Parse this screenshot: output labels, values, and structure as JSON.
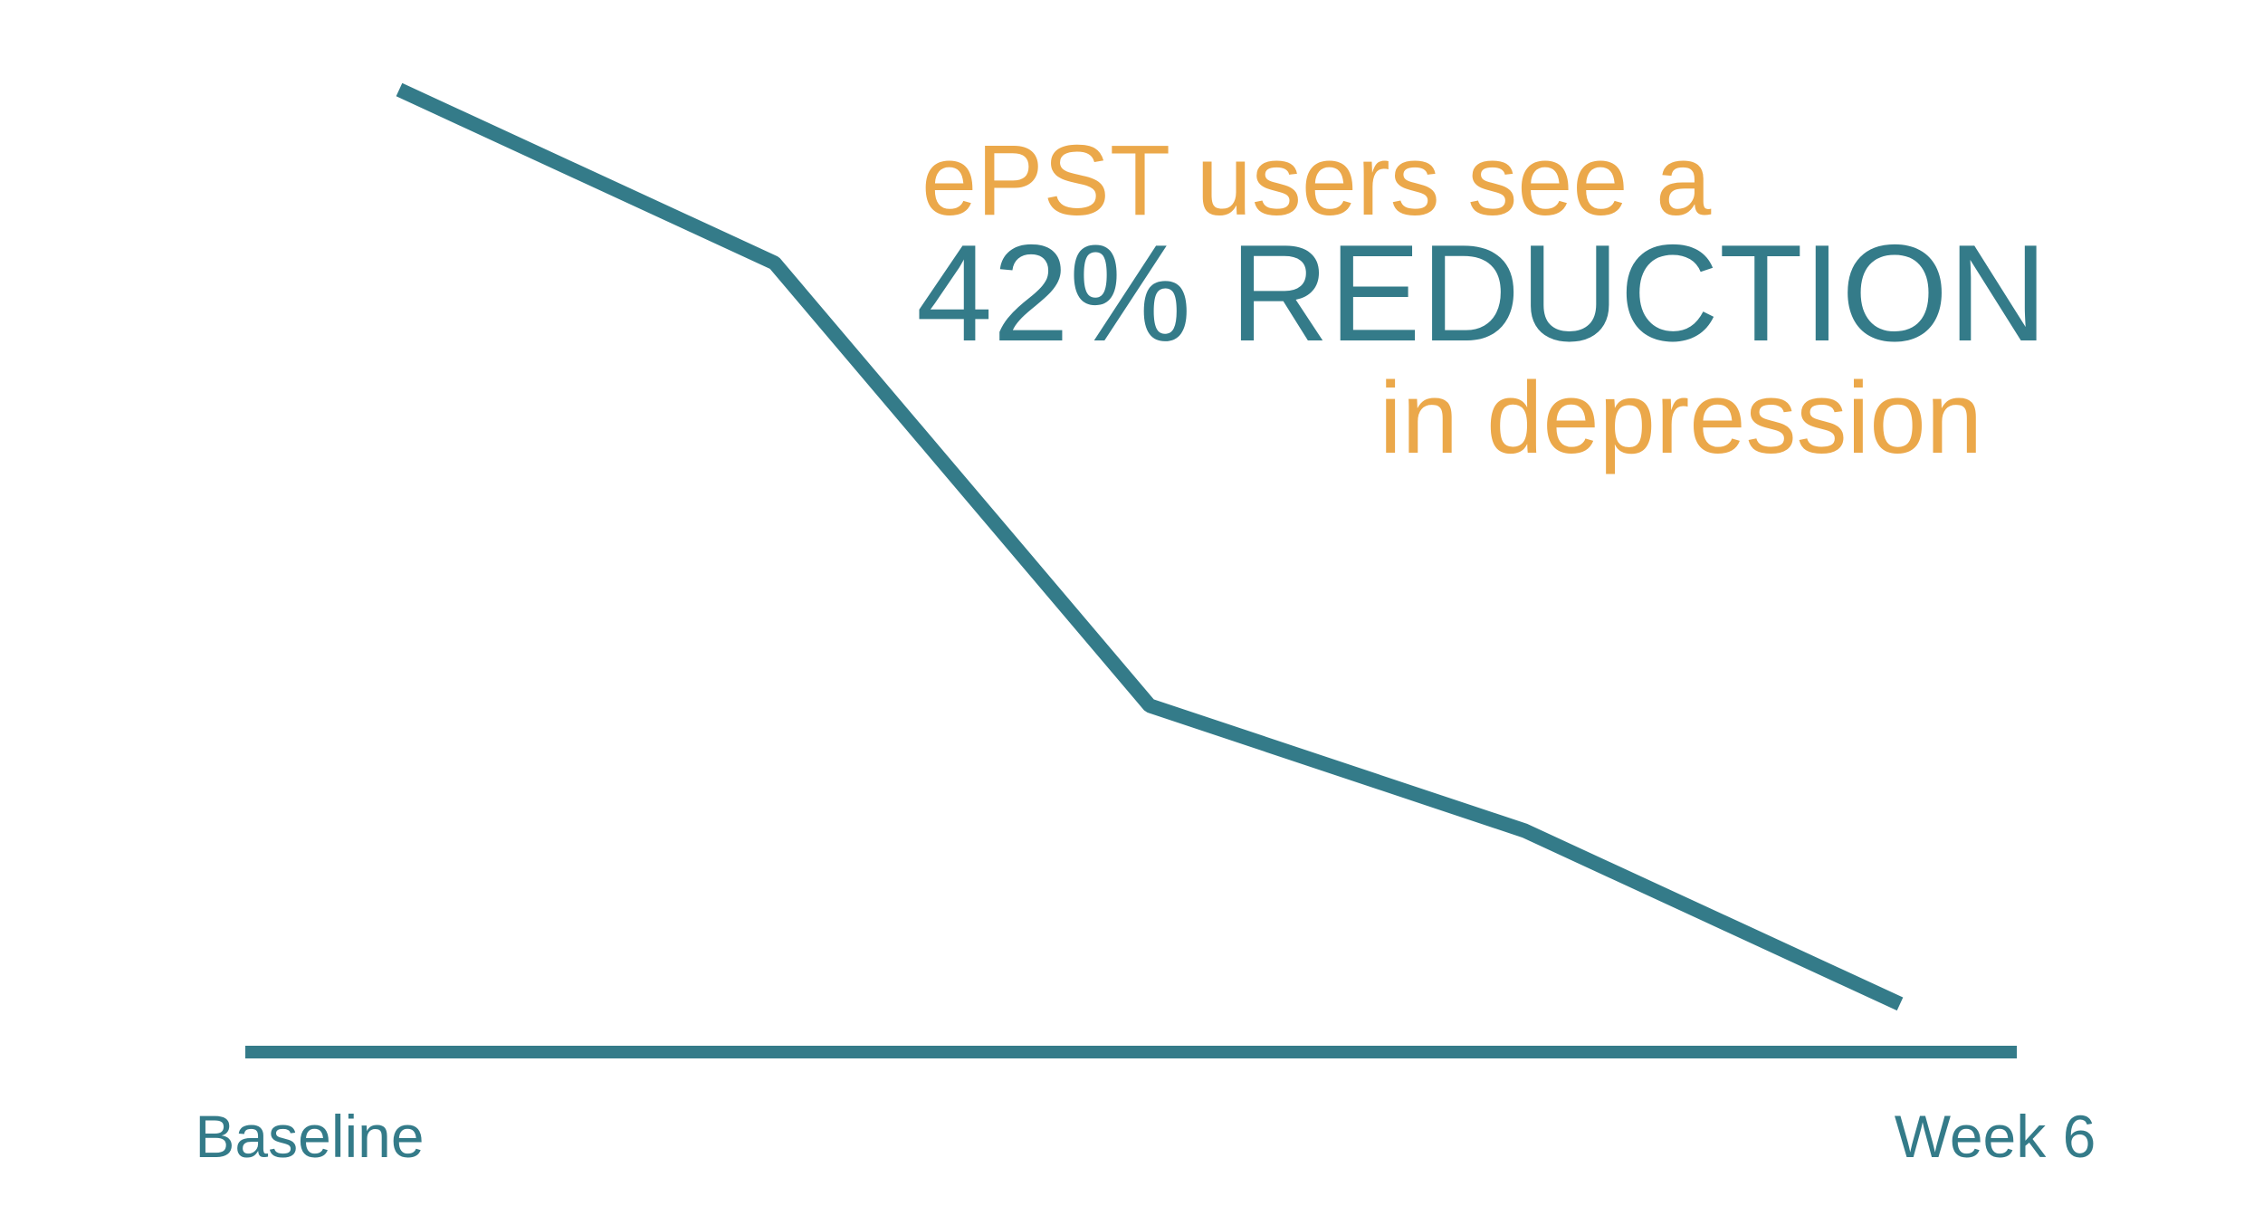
{
  "chart_data": {
    "type": "line",
    "annotations": [
      "ePST users see a",
      "42% REDUCTION",
      "in depression"
    ],
    "annotation_colors": [
      "#eba84a",
      "#347b89",
      "#eba84a"
    ],
    "categories": [
      "Baseline",
      null,
      null,
      null,
      "Week 6"
    ],
    "values": [
      100,
      82,
      36,
      23,
      5
    ],
    "color": "#347b89",
    "ylim": [
      0,
      100
    ]
  }
}
